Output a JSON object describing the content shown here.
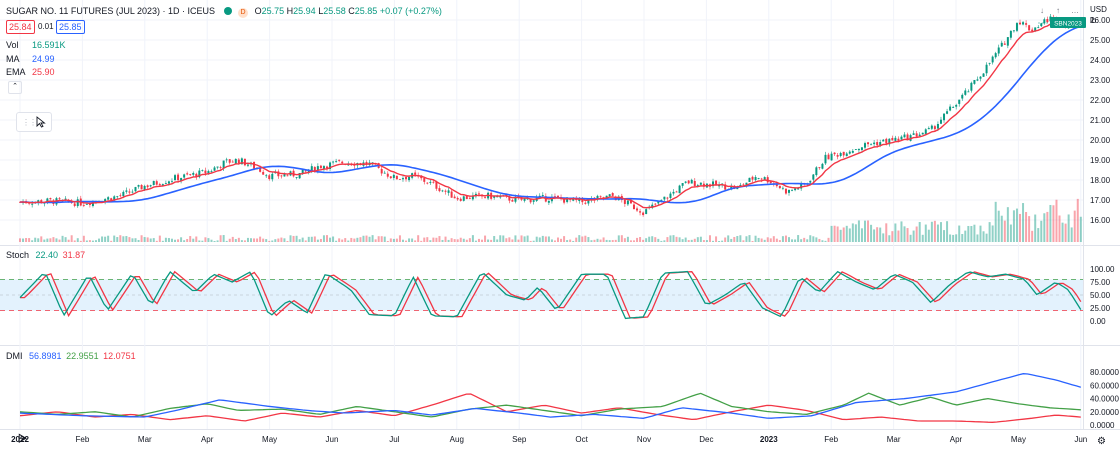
{
  "header": {
    "symbol_title": "SUGAR NO. 11 FUTURES (JUL 2023) · 1D · ICEUS",
    "badge": "D",
    "ohlc": {
      "o_label": "O",
      "o": "25.75",
      "h_label": "H",
      "h": "25.94",
      "l_label": "L",
      "l": "25.58",
      "c_label": "C",
      "c": "25.85",
      "change": "+0.07 (+0.27%)"
    },
    "bid": "25.84",
    "spread": "0.01",
    "ask": "25.85",
    "currency": "USD",
    "unit": "lb"
  },
  "indicators": [
    {
      "name": "Vol",
      "value": "16.591K",
      "color": "#089981"
    },
    {
      "name": "MA",
      "value": "24.99",
      "color": "#2962ff"
    },
    {
      "name": "EMA",
      "value": "25.90",
      "color": "#f23645"
    }
  ],
  "last_price_label": "SBN2023",
  "stoch_legend": {
    "name": "Stoch",
    "k": "22.40",
    "d": "31.87"
  },
  "dmi_legend": {
    "name": "DMI",
    "adx": "56.8981",
    "pdi": "22.9551",
    "mdi": "12.0751"
  },
  "colors": {
    "up": "#089981",
    "down": "#f23645",
    "ma": "#2962ff",
    "ema": "#f23645",
    "stoch_k": "#089981",
    "stoch_d": "#f23645",
    "adx": "#2962ff",
    "pdi": "#43a047",
    "mdi": "#f23645",
    "band": "#e3f2fd"
  },
  "chart_data": [
    {
      "type": "candlestick",
      "title": "SUGAR NO. 11 FUTURES (JUL 2023) · 1D · ICEUS",
      "x_ticks": [
        "2022",
        "Feb",
        "Mar",
        "Apr",
        "May",
        "Jun",
        "Jul",
        "Aug",
        "Sep",
        "Oct",
        "Nov",
        "Dec",
        "2023",
        "Feb",
        "Mar",
        "Apr",
        "May",
        "Jun"
      ],
      "y_ticks": [
        "26.00",
        "25.00",
        "24.00",
        "23.00",
        "22.00",
        "21.00",
        "20.00",
        "19.00",
        "18.00",
        "17.00",
        "16.00"
      ],
      "ylim": [
        15.6,
        26.6
      ],
      "price_path": [
        {
          "m": 0.0,
          "p": 16.9
        },
        {
          "m": 0.5,
          "p": 16.95
        },
        {
          "m": 1.0,
          "p": 16.85
        },
        {
          "m": 1.6,
          "p": 17.2
        },
        {
          "m": 2.0,
          "p": 17.7
        },
        {
          "m": 2.5,
          "p": 18.1
        },
        {
          "m": 3.0,
          "p": 18.4
        },
        {
          "m": 3.3,
          "p": 18.9
        },
        {
          "m": 3.5,
          "p": 19.0
        },
        {
          "m": 3.8,
          "p": 18.6
        },
        {
          "m": 4.0,
          "p": 18.2
        },
        {
          "m": 4.5,
          "p": 18.3
        },
        {
          "m": 4.8,
          "p": 18.7
        },
        {
          "m": 5.2,
          "p": 18.9
        },
        {
          "m": 5.6,
          "p": 18.8
        },
        {
          "m": 6.0,
          "p": 18.1
        },
        {
          "m": 6.3,
          "p": 18.2
        },
        {
          "m": 6.6,
          "p": 17.8
        },
        {
          "m": 7.0,
          "p": 17.1
        },
        {
          "m": 7.5,
          "p": 17.2
        },
        {
          "m": 8.0,
          "p": 17.0
        },
        {
          "m": 8.5,
          "p": 17.1
        },
        {
          "m": 9.0,
          "p": 16.9
        },
        {
          "m": 9.5,
          "p": 17.2
        },
        {
          "m": 10.0,
          "p": 16.4
        },
        {
          "m": 10.3,
          "p": 17.0
        },
        {
          "m": 10.7,
          "p": 17.9
        },
        {
          "m": 11.0,
          "p": 17.8
        },
        {
          "m": 11.5,
          "p": 17.6
        },
        {
          "m": 11.8,
          "p": 18.2
        },
        {
          "m": 12.0,
          "p": 18.0
        },
        {
          "m": 12.3,
          "p": 17.4
        },
        {
          "m": 12.6,
          "p": 17.8
        },
        {
          "m": 12.9,
          "p": 19.1
        },
        {
          "m": 13.2,
          "p": 19.4
        },
        {
          "m": 13.6,
          "p": 19.8
        },
        {
          "m": 14.0,
          "p": 20.0
        },
        {
          "m": 14.3,
          "p": 20.2
        },
        {
          "m": 14.6,
          "p": 20.5
        },
        {
          "m": 14.9,
          "p": 21.5
        },
        {
          "m": 15.2,
          "p": 22.5
        },
        {
          "m": 15.5,
          "p": 23.7
        },
        {
          "m": 15.8,
          "p": 25.0
        },
        {
          "m": 16.0,
          "p": 26.0
        },
        {
          "m": 16.2,
          "p": 25.5
        },
        {
          "m": 16.5,
          "p": 26.1
        },
        {
          "m": 16.7,
          "p": 25.8
        },
        {
          "m": 17.0,
          "p": 25.85
        }
      ],
      "last": {
        "value": 25.85,
        "label": "SBN2023"
      }
    },
    {
      "type": "line",
      "name": "Stoch",
      "ylim": [
        0,
        100
      ],
      "y_ticks": [
        "100.00",
        "75.00",
        "50.00",
        "25.00",
        "0.00"
      ],
      "bands": [
        80,
        20
      ],
      "k_last": 22.4,
      "d_last": 31.87,
      "cycle_points": [
        {
          "m": 0.0,
          "v": 45
        },
        {
          "m": 0.4,
          "v": 95
        },
        {
          "m": 0.7,
          "v": 10
        },
        {
          "m": 1.1,
          "v": 90
        },
        {
          "m": 1.4,
          "v": 20
        },
        {
          "m": 1.8,
          "v": 92
        },
        {
          "m": 2.1,
          "v": 30
        },
        {
          "m": 2.4,
          "v": 95
        },
        {
          "m": 2.8,
          "v": 55
        },
        {
          "m": 3.1,
          "v": 90
        },
        {
          "m": 3.4,
          "v": 75
        },
        {
          "m": 3.7,
          "v": 95
        },
        {
          "m": 4.0,
          "v": 8
        },
        {
          "m": 4.3,
          "v": 40
        },
        {
          "m": 4.6,
          "v": 15
        },
        {
          "m": 4.9,
          "v": 92
        },
        {
          "m": 5.3,
          "v": 60
        },
        {
          "m": 5.6,
          "v": 12
        },
        {
          "m": 6.0,
          "v": 10
        },
        {
          "m": 6.3,
          "v": 85
        },
        {
          "m": 6.6,
          "v": 10
        },
        {
          "m": 7.0,
          "v": 8
        },
        {
          "m": 7.4,
          "v": 95
        },
        {
          "m": 7.8,
          "v": 50
        },
        {
          "m": 8.1,
          "v": 40
        },
        {
          "m": 8.3,
          "v": 65
        },
        {
          "m": 8.6,
          "v": 20
        },
        {
          "m": 9.0,
          "v": 90
        },
        {
          "m": 9.4,
          "v": 90
        },
        {
          "m": 9.7,
          "v": 5
        },
        {
          "m": 10.0,
          "v": 8
        },
        {
          "m": 10.3,
          "v": 92
        },
        {
          "m": 10.7,
          "v": 95
        },
        {
          "m": 11.0,
          "v": 30
        },
        {
          "m": 11.3,
          "v": 50
        },
        {
          "m": 11.6,
          "v": 75
        },
        {
          "m": 11.9,
          "v": 25
        },
        {
          "m": 12.2,
          "v": 8
        },
        {
          "m": 12.5,
          "v": 85
        },
        {
          "m": 12.8,
          "v": 55
        },
        {
          "m": 13.1,
          "v": 95
        },
        {
          "m": 13.4,
          "v": 75
        },
        {
          "m": 13.7,
          "v": 60
        },
        {
          "m": 14.0,
          "v": 90
        },
        {
          "m": 14.3,
          "v": 75
        },
        {
          "m": 14.6,
          "v": 35
        },
        {
          "m": 14.9,
          "v": 70
        },
        {
          "m": 15.2,
          "v": 95
        },
        {
          "m": 15.5,
          "v": 85
        },
        {
          "m": 15.8,
          "v": 90
        },
        {
          "m": 16.1,
          "v": 80
        },
        {
          "m": 16.3,
          "v": 50
        },
        {
          "m": 16.6,
          "v": 75
        },
        {
          "m": 16.8,
          "v": 60
        },
        {
          "m": 17.0,
          "v": 22
        }
      ]
    },
    {
      "type": "line",
      "name": "DMI",
      "ylim": [
        0,
        85
      ],
      "y_ticks": [
        "80.0000",
        "60.0000",
        "40.0000",
        "20.0000",
        "0.0000"
      ],
      "adx_points": [
        {
          "m": 0,
          "v": 18
        },
        {
          "m": 1,
          "v": 14
        },
        {
          "m": 2,
          "v": 12
        },
        {
          "m": 2.5,
          "v": 22
        },
        {
          "m": 3.2,
          "v": 38
        },
        {
          "m": 4,
          "v": 28
        },
        {
          "m": 4.6,
          "v": 22
        },
        {
          "m": 5.2,
          "v": 18
        },
        {
          "m": 6,
          "v": 22
        },
        {
          "m": 6.6,
          "v": 15
        },
        {
          "m": 7.3,
          "v": 25
        },
        {
          "m": 8,
          "v": 18
        },
        {
          "m": 8.5,
          "v": 12
        },
        {
          "m": 9.2,
          "v": 16
        },
        {
          "m": 10,
          "v": 10
        },
        {
          "m": 10.6,
          "v": 26
        },
        {
          "m": 11.4,
          "v": 18
        },
        {
          "m": 12,
          "v": 10
        },
        {
          "m": 12.7,
          "v": 14
        },
        {
          "m": 13.4,
          "v": 34
        },
        {
          "m": 14.2,
          "v": 40
        },
        {
          "m": 15,
          "v": 50
        },
        {
          "m": 15.7,
          "v": 68
        },
        {
          "m": 16.1,
          "v": 78
        },
        {
          "m": 16.6,
          "v": 68
        },
        {
          "m": 17,
          "v": 57
        }
      ],
      "pdi_points": [
        {
          "m": 0,
          "v": 20
        },
        {
          "m": 0.6,
          "v": 16
        },
        {
          "m": 1.2,
          "v": 20
        },
        {
          "m": 1.8,
          "v": 12
        },
        {
          "m": 2.4,
          "v": 25
        },
        {
          "m": 3,
          "v": 32
        },
        {
          "m": 3.5,
          "v": 22
        },
        {
          "m": 4.2,
          "v": 24
        },
        {
          "m": 4.8,
          "v": 16
        },
        {
          "m": 5.4,
          "v": 28
        },
        {
          "m": 6,
          "v": 20
        },
        {
          "m": 6.6,
          "v": 12
        },
        {
          "m": 7.2,
          "v": 24
        },
        {
          "m": 7.8,
          "v": 30
        },
        {
          "m": 8.4,
          "v": 22
        },
        {
          "m": 9,
          "v": 14
        },
        {
          "m": 9.6,
          "v": 24
        },
        {
          "m": 10.3,
          "v": 28
        },
        {
          "m": 10.9,
          "v": 48
        },
        {
          "m": 11.4,
          "v": 28
        },
        {
          "m": 12,
          "v": 20
        },
        {
          "m": 12.6,
          "v": 16
        },
        {
          "m": 13.2,
          "v": 30
        },
        {
          "m": 13.6,
          "v": 48
        },
        {
          "m": 14.1,
          "v": 30
        },
        {
          "m": 14.6,
          "v": 42
        },
        {
          "m": 15,
          "v": 30
        },
        {
          "m": 15.5,
          "v": 40
        },
        {
          "m": 16,
          "v": 32
        },
        {
          "m": 16.5,
          "v": 26
        },
        {
          "m": 17,
          "v": 23
        }
      ],
      "mdi_points": [
        {
          "m": 0,
          "v": 14
        },
        {
          "m": 0.6,
          "v": 20
        },
        {
          "m": 1.2,
          "v": 12
        },
        {
          "m": 1.8,
          "v": 16
        },
        {
          "m": 2.4,
          "v": 8
        },
        {
          "m": 3,
          "v": 14
        },
        {
          "m": 3.6,
          "v": 6
        },
        {
          "m": 4.2,
          "v": 18
        },
        {
          "m": 4.8,
          "v": 12
        },
        {
          "m": 5.4,
          "v": 22
        },
        {
          "m": 6,
          "v": 14
        },
        {
          "m": 6.6,
          "v": 30
        },
        {
          "m": 7.2,
          "v": 48
        },
        {
          "m": 7.8,
          "v": 20
        },
        {
          "m": 8.4,
          "v": 30
        },
        {
          "m": 9,
          "v": 18
        },
        {
          "m": 9.6,
          "v": 26
        },
        {
          "m": 10.2,
          "v": 16
        },
        {
          "m": 10.8,
          "v": 8
        },
        {
          "m": 11.4,
          "v": 20
        },
        {
          "m": 12,
          "v": 30
        },
        {
          "m": 12.6,
          "v": 22
        },
        {
          "m": 13.2,
          "v": 8
        },
        {
          "m": 13.8,
          "v": 12
        },
        {
          "m": 14.4,
          "v": 6
        },
        {
          "m": 15,
          "v": 6
        },
        {
          "m": 15.6,
          "v": 4
        },
        {
          "m": 16.2,
          "v": 10
        },
        {
          "m": 16.6,
          "v": 15
        },
        {
          "m": 17,
          "v": 12
        }
      ]
    }
  ]
}
